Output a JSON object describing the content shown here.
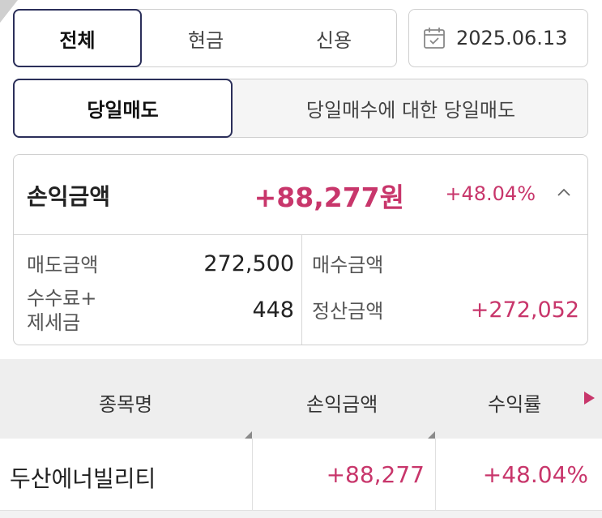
{
  "tabs_type": [
    {
      "label": "전체",
      "active": true
    },
    {
      "label": "현금",
      "active": false
    },
    {
      "label": "신용",
      "active": false
    }
  ],
  "date": {
    "value": "2025.06.13",
    "icon": "calendar-icon"
  },
  "tabs_mode": [
    {
      "label": "당일매도",
      "active": true
    },
    {
      "label": "당일매수에 대한 당일매도",
      "active": false
    }
  ],
  "summary": {
    "profit_label": "손익금액",
    "profit_amount": "+88,277원",
    "profit_rate": "+48.04%",
    "collapse_icon": "chevron-up-icon",
    "sell_amount_label": "매도금액",
    "sell_amount": "272,500",
    "buy_amount_label": "매수금액",
    "buy_amount": "",
    "fee_tax_label_line1": "수수료+",
    "fee_tax_label_line2": "제세금",
    "fee_tax": "448",
    "settle_amount_label": "정산금액",
    "settle_amount": "+272,052"
  },
  "table": {
    "columns": [
      "종목명",
      "손익금액",
      "수익률"
    ],
    "more_icon": "play-right-icon",
    "rows": [
      {
        "name": "두산에너빌리티",
        "profit": "+88,277",
        "rate": "+48.04%"
      }
    ]
  },
  "colors": {
    "accent_pink": "#c8366b",
    "active_border": "#2b2f5a"
  }
}
